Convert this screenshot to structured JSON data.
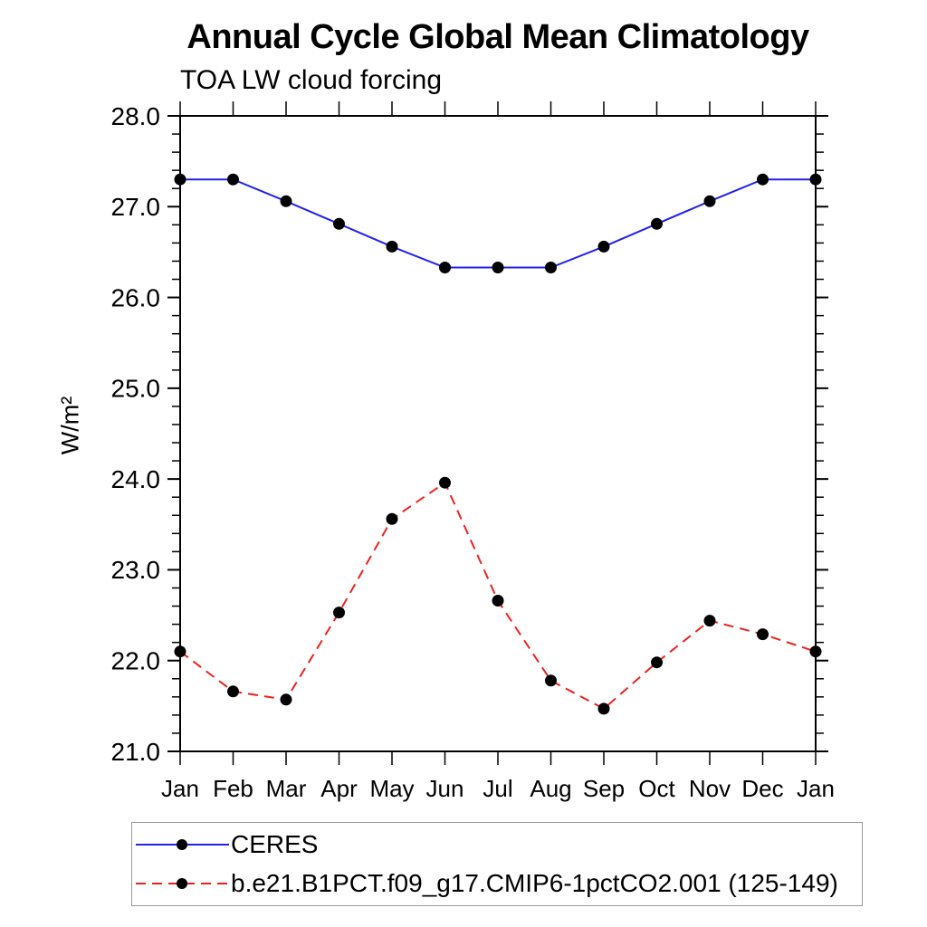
{
  "header": {
    "title": "Annual Cycle Global Mean Climatology",
    "subtitle": "TOA LW cloud forcing"
  },
  "chart_data": {
    "type": "line",
    "title": "Annual Cycle Global Mean Climatology",
    "subtitle": "TOA LW cloud forcing",
    "xlabel": "",
    "ylabel": "W/m²",
    "categories": [
      "Jan",
      "Feb",
      "Mar",
      "Apr",
      "May",
      "Jun",
      "Jul",
      "Aug",
      "Sep",
      "Oct",
      "Nov",
      "Dec",
      "Jan"
    ],
    "ylim": [
      21.0,
      28.0
    ],
    "ytick_major_step": 1.0,
    "ytick_minor_step": 0.2,
    "ytick_labels": [
      "21.0",
      "22.0",
      "23.0",
      "24.0",
      "25.0",
      "26.0",
      "27.0",
      "28.0"
    ],
    "grid": false,
    "frame": "box-with-outward-ticks",
    "legend_position": "bottom-left-box",
    "axis_color": "#000000",
    "marker_shape": "filled-circle",
    "series": [
      {
        "name": "CERES",
        "color": "#2121ee",
        "line_style": "solid",
        "marker_color": "#000000",
        "values": [
          27.3,
          27.3,
          27.06,
          26.81,
          26.56,
          26.33,
          26.33,
          26.33,
          26.56,
          26.81,
          27.06,
          27.3,
          27.3
        ]
      },
      {
        "name": "b.e21.B1PCT.f09_g17.CMIP6-1pctCO2.001 (125-149)",
        "color": "#ee2121",
        "line_style": "dashed",
        "marker_color": "#000000",
        "values": [
          22.1,
          21.66,
          21.57,
          22.53,
          23.56,
          23.96,
          22.66,
          21.78,
          21.47,
          21.98,
          22.44,
          22.29,
          22.1
        ]
      }
    ]
  }
}
